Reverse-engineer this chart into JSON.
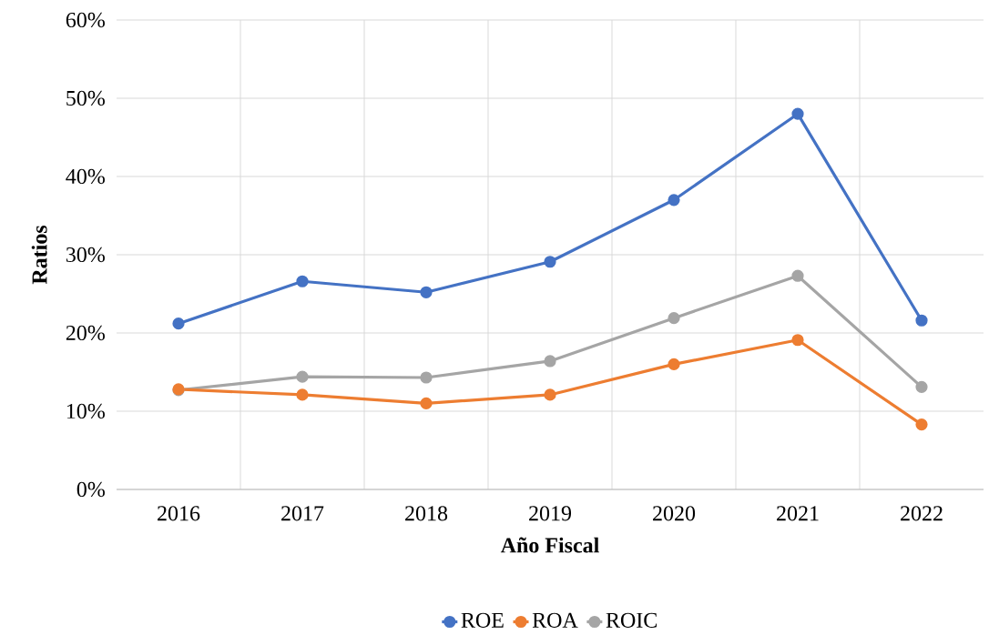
{
  "chart_data": {
    "type": "line",
    "xlabel": "Año Fiscal",
    "ylabel": "Ratios",
    "categories": [
      "2016",
      "2017",
      "2018",
      "2019",
      "2020",
      "2021",
      "2022"
    ],
    "series": [
      {
        "name": "ROE",
        "color": "#4472c4",
        "values": [
          21.2,
          26.6,
          25.2,
          29.1,
          37.0,
          48.0,
          21.6
        ]
      },
      {
        "name": "ROA",
        "color": "#ed7d31",
        "values": [
          12.8,
          12.1,
          11.0,
          12.1,
          16.0,
          19.1,
          8.3
        ]
      },
      {
        "name": "ROIC",
        "color": "#a5a5a5",
        "values": [
          12.7,
          14.4,
          14.3,
          16.4,
          21.9,
          27.3,
          13.1
        ]
      }
    ],
    "ylim": [
      0,
      60
    ],
    "yticks": [
      {
        "value": 0,
        "label": "0%"
      },
      {
        "value": 10,
        "label": "10%"
      },
      {
        "value": 20,
        "label": "20%"
      },
      {
        "value": 30,
        "label": "30%"
      },
      {
        "value": 40,
        "label": "40%"
      },
      {
        "value": 50,
        "label": "50%"
      },
      {
        "value": 60,
        "label": "60%"
      }
    ],
    "grid": true,
    "legend": "bottom",
    "marker": "circle",
    "line_style": "solid"
  }
}
